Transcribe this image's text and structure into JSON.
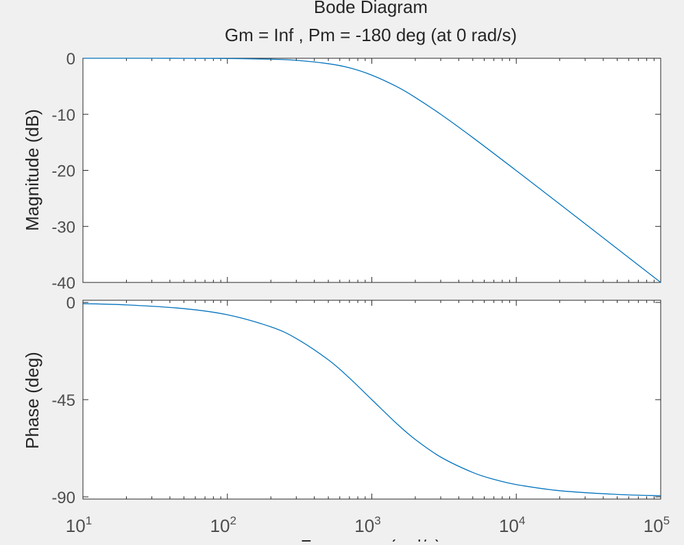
{
  "window": {
    "background_color": "#f0f0f0"
  },
  "chart_data": [
    {
      "type": "line",
      "panel": "magnitude",
      "title": "Bode Diagram",
      "subtitle": "Gm = Inf ,  Pm = -180 deg (at 0 rad/s)",
      "xlabel": "Frequency (rad/s)",
      "ylabel": "Magnitude (dB)",
      "xscale": "log",
      "xlim": [
        10,
        100000
      ],
      "ylim": [
        -40,
        0
      ],
      "yticks": [
        "-40",
        "-30",
        "-20",
        "-10",
        "0"
      ],
      "ytick_values": [
        -40,
        -30,
        -20,
        -10,
        0
      ],
      "grid": false,
      "series": [
        {
          "color": "#0072bd",
          "x": [
            10,
            20,
            50,
            100,
            200,
            300,
            500,
            700,
            1000,
            1500,
            2000,
            3000,
            5000,
            10000,
            20000,
            50000,
            100000
          ],
          "y": [
            0.0,
            -0.002,
            -0.011,
            -0.043,
            -0.17,
            -0.37,
            -0.97,
            -1.7,
            -3.01,
            -5.1,
            -6.99,
            -10.0,
            -14.15,
            -20.04,
            -26.02,
            -33.98,
            -40.0
          ]
        }
      ]
    },
    {
      "type": "line",
      "panel": "phase",
      "xlabel": "Frequency (rad/s)",
      "ylabel": "Phase (deg)",
      "xscale": "log",
      "xlim": [
        10,
        100000
      ],
      "ylim": [
        -91,
        1
      ],
      "xticks": [
        {
          "base": "10",
          "exp": "1"
        },
        {
          "base": "10",
          "exp": "2"
        },
        {
          "base": "10",
          "exp": "3"
        },
        {
          "base": "10",
          "exp": "4"
        },
        {
          "base": "10",
          "exp": "5"
        }
      ],
      "xtick_values": [
        10,
        100,
        1000,
        10000,
        100000
      ],
      "yticks": [
        "-90",
        "-45",
        "0"
      ],
      "ytick_values": [
        -90,
        -45,
        0
      ],
      "grid": false,
      "series": [
        {
          "color": "#0072bd",
          "x": [
            10,
            20,
            50,
            100,
            200,
            300,
            500,
            700,
            1000,
            1500,
            2000,
            3000,
            5000,
            7000,
            10000,
            20000,
            50000,
            100000
          ],
          "y": [
            -0.57,
            -1.15,
            -2.86,
            -5.71,
            -11.31,
            -16.7,
            -26.57,
            -34.99,
            -45.0,
            -56.31,
            -63.43,
            -71.57,
            -78.69,
            -81.87,
            -84.29,
            -87.14,
            -88.85,
            -89.43
          ]
        }
      ]
    }
  ]
}
